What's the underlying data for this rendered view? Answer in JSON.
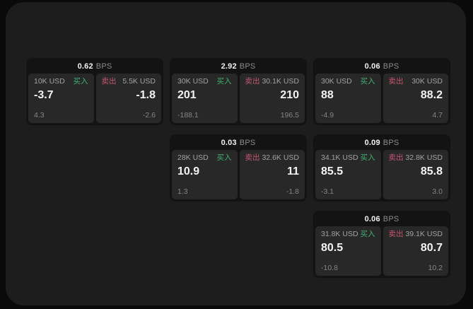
{
  "page": {
    "outer_bg": "#0a0a0a",
    "panel_bg": "#1d1d1d"
  },
  "colors": {
    "card_bg": "#131313",
    "tile_bg": "#282828",
    "buy_green": "#40b271",
    "sell_rose": "#c25672",
    "primary_text": "#f4f4f4",
    "muted_text": "#8b8b8b"
  },
  "labels": {
    "bps": "BPS",
    "buy": "买入",
    "sell": "卖出"
  },
  "cards": [
    {
      "bps": "0.62",
      "buy": {
        "amount": "10K USD",
        "price": "-3.7",
        "delta": "4.3"
      },
      "sell": {
        "amount": "5.5K USD",
        "price": "-1.8",
        "delta": "-2.6"
      }
    },
    {
      "bps": "2.92",
      "buy": {
        "amount": "30K USD",
        "price": "201",
        "delta": "-188.1"
      },
      "sell": {
        "amount": "30.1K USD",
        "price": "210",
        "delta": "196.5"
      }
    },
    {
      "bps": "0.06",
      "buy": {
        "amount": "30K USD",
        "price": "88",
        "delta": "-4.9"
      },
      "sell": {
        "amount": "30K USD",
        "price": "88.2",
        "delta": "4.7"
      }
    },
    {
      "bps": "0.03",
      "buy": {
        "amount": "28K USD",
        "price": "10.9",
        "delta": "1.3"
      },
      "sell": {
        "amount": "32.6K USD",
        "price": "11",
        "delta": "-1.8"
      }
    },
    {
      "bps": "0.09",
      "buy": {
        "amount": "34.1K USD",
        "price": "85.5",
        "delta": "-3.1"
      },
      "sell": {
        "amount": "32.8K USD",
        "price": "85.8",
        "delta": "3.0"
      }
    },
    {
      "bps": "0.06",
      "buy": {
        "amount": "31.8K USD",
        "price": "80.5",
        "delta": "-10.8"
      },
      "sell": {
        "amount": "39.1K USD",
        "price": "80.7",
        "delta": "10.2"
      }
    }
  ]
}
